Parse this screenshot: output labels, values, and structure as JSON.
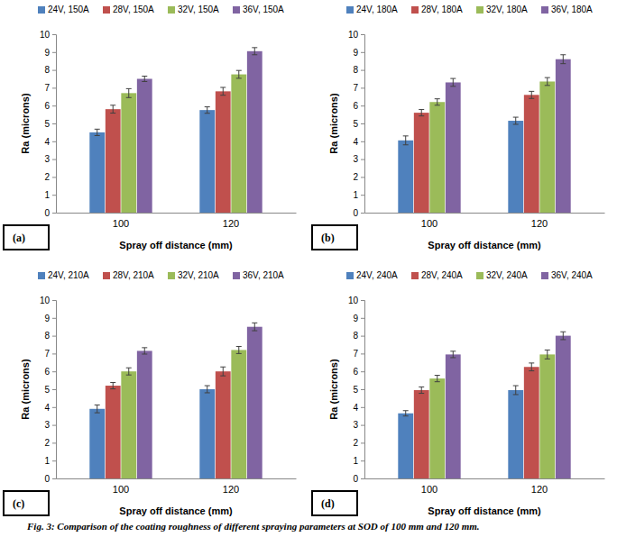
{
  "caption": "Fig. 3: Comparison of the coating roughness of different spraying parameters at SOD of 100 mm and 120 mm.",
  "chart_data": [
    {
      "type": "bar",
      "panel_label": "(a)",
      "x_label": "Spray off distance (mm)",
      "y_label": "Ra (microns)",
      "categories": [
        "100",
        "120"
      ],
      "ylim": [
        0,
        10
      ],
      "yticks": [
        0,
        1,
        2,
        3,
        4,
        5,
        6,
        7,
        8,
        9,
        10
      ],
      "grid": false,
      "legend": "top",
      "series": [
        {
          "name": "24V, 150A",
          "color": "#4f81bd",
          "values": [
            4.5,
            5.75
          ],
          "errors": [
            0.18,
            0.18
          ]
        },
        {
          "name": "28V, 150A",
          "color": "#c0504d",
          "values": [
            5.8,
            6.8
          ],
          "errors": [
            0.22,
            0.22
          ]
        },
        {
          "name": "32V, 150A",
          "color": "#9bbb59",
          "values": [
            6.7,
            7.75
          ],
          "errors": [
            0.25,
            0.22
          ]
        },
        {
          "name": "36V, 150A",
          "color": "#8064a2",
          "values": [
            7.5,
            9.05
          ],
          "errors": [
            0.15,
            0.2
          ]
        }
      ]
    },
    {
      "type": "bar",
      "panel_label": "(b)",
      "x_label": "Spray off distance (mm)",
      "y_label": "Ra (microns)",
      "categories": [
        "100",
        "120"
      ],
      "ylim": [
        0,
        10
      ],
      "yticks": [
        0,
        1,
        2,
        3,
        4,
        5,
        6,
        7,
        8,
        9,
        10
      ],
      "grid": false,
      "legend": "top",
      "series": [
        {
          "name": "24V, 180A",
          "color": "#4f81bd",
          "values": [
            4.05,
            5.15
          ],
          "errors": [
            0.25,
            0.2
          ]
        },
        {
          "name": "28V, 180A",
          "color": "#c0504d",
          "values": [
            5.6,
            6.6
          ],
          "errors": [
            0.18,
            0.2
          ]
        },
        {
          "name": "32V, 180A",
          "color": "#9bbb59",
          "values": [
            6.2,
            7.35
          ],
          "errors": [
            0.18,
            0.22
          ]
        },
        {
          "name": "36V, 180A",
          "color": "#8064a2",
          "values": [
            7.3,
            8.6
          ],
          "errors": [
            0.22,
            0.25
          ]
        }
      ]
    },
    {
      "type": "bar",
      "panel_label": "(c)",
      "x_label": "Spray off distance (mm)",
      "y_label": "Ra (microns)",
      "categories": [
        "100",
        "120"
      ],
      "ylim": [
        0,
        10
      ],
      "yticks": [
        0,
        1,
        2,
        3,
        4,
        5,
        6,
        7,
        8,
        9,
        10
      ],
      "grid": false,
      "legend": "top",
      "series": [
        {
          "name": "24V, 210A",
          "color": "#4f81bd",
          "values": [
            3.9,
            5.0
          ],
          "errors": [
            0.22,
            0.2
          ]
        },
        {
          "name": "28V, 210A",
          "color": "#c0504d",
          "values": [
            5.2,
            6.0
          ],
          "errors": [
            0.18,
            0.25
          ]
        },
        {
          "name": "32V, 210A",
          "color": "#9bbb59",
          "values": [
            6.0,
            7.2
          ],
          "errors": [
            0.2,
            0.2
          ]
        },
        {
          "name": "36V, 210A",
          "color": "#8064a2",
          "values": [
            7.15,
            8.5
          ],
          "errors": [
            0.18,
            0.22
          ]
        }
      ]
    },
    {
      "type": "bar",
      "panel_label": "(d)",
      "x_label": "Spray off distance (mm)",
      "y_label": "Ra (microns)",
      "categories": [
        "100",
        "120"
      ],
      "ylim": [
        0,
        10
      ],
      "yticks": [
        0,
        1,
        2,
        3,
        4,
        5,
        6,
        7,
        8,
        9,
        10
      ],
      "grid": false,
      "legend": "top",
      "series": [
        {
          "name": "24V, 240A",
          "color": "#4f81bd",
          "values": [
            3.65,
            4.95
          ],
          "errors": [
            0.15,
            0.25
          ]
        },
        {
          "name": "28V, 240A",
          "color": "#c0504d",
          "values": [
            4.95,
            6.25
          ],
          "errors": [
            0.18,
            0.22
          ]
        },
        {
          "name": "32V, 240A",
          "color": "#9bbb59",
          "values": [
            5.6,
            6.95
          ],
          "errors": [
            0.18,
            0.25
          ]
        },
        {
          "name": "36V, 240A",
          "color": "#8064a2",
          "values": [
            6.95,
            8.0
          ],
          "errors": [
            0.18,
            0.22
          ]
        }
      ]
    }
  ]
}
